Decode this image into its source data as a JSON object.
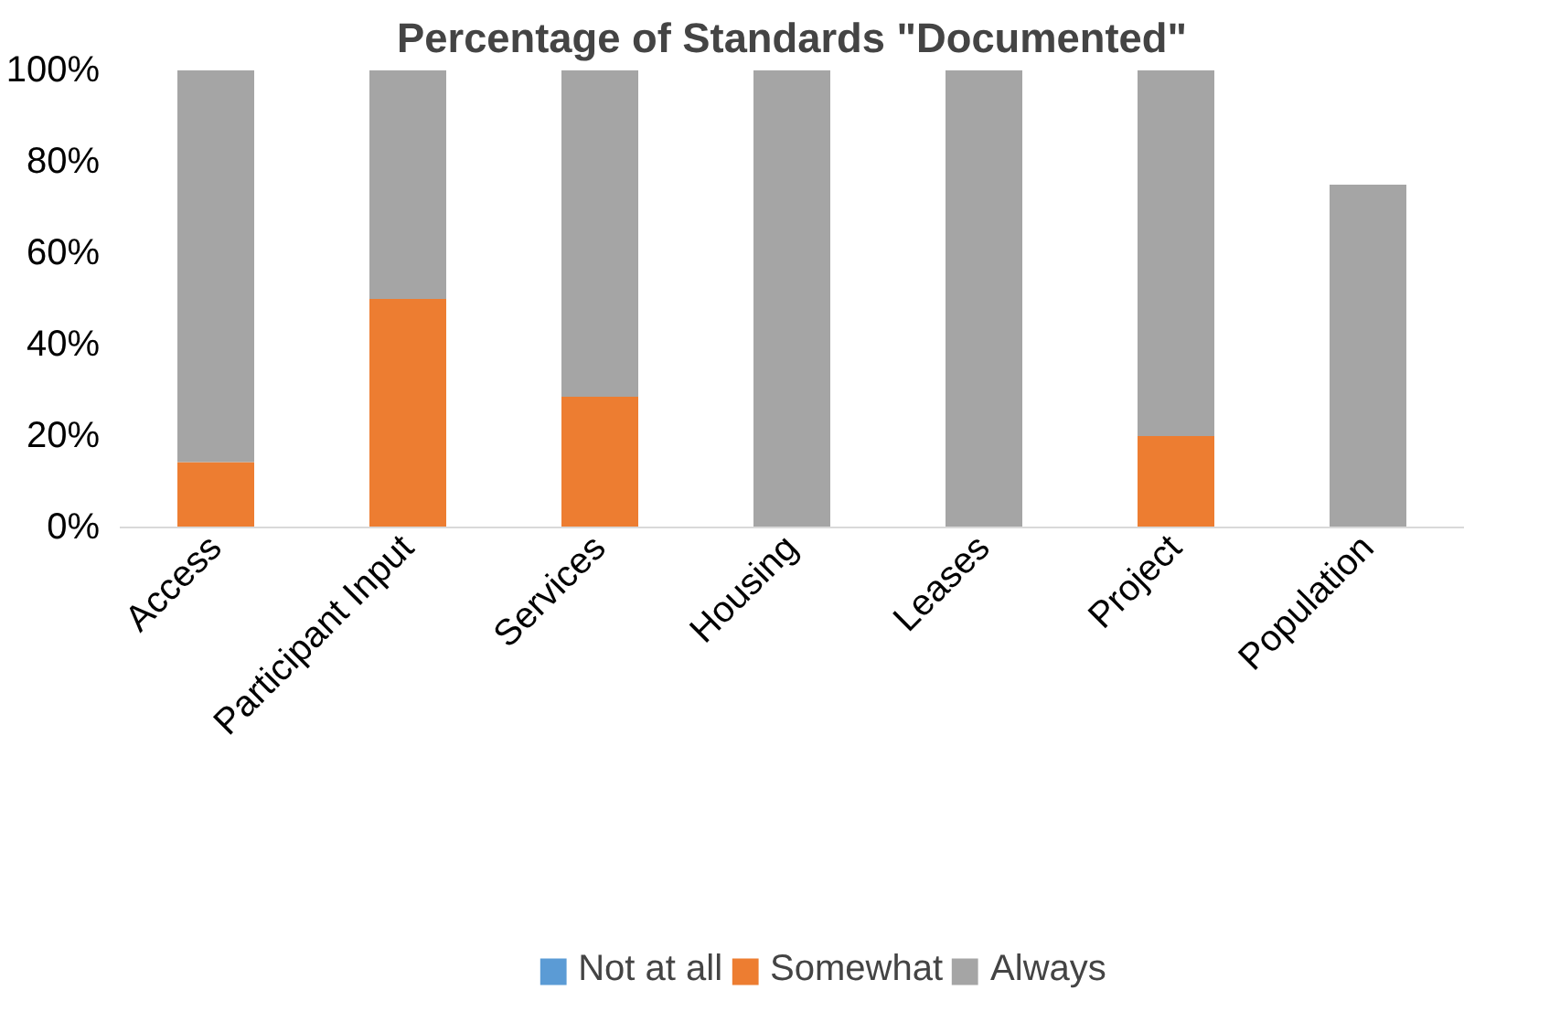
{
  "chart_data": {
    "type": "bar",
    "title": "Percentage of Standards \"Documented\"",
    "stacked": true,
    "categories": [
      "Access",
      "Participant Input",
      "Services",
      "Housing",
      "Leases",
      "Project",
      "Population"
    ],
    "series": [
      {
        "name": "Not at all",
        "color": "#5b9bd5",
        "values": [
          0,
          0,
          0,
          0,
          0,
          0,
          0
        ]
      },
      {
        "name": "Somewhat",
        "color": "#ed7d31",
        "values": [
          14.3,
          50,
          28.6,
          0,
          0,
          20,
          0
        ]
      },
      {
        "name": "Always",
        "color": "#a5a5a5",
        "values": [
          85.7,
          50,
          71.4,
          100,
          100,
          80,
          75
        ]
      }
    ],
    "ylim": [
      0,
      100
    ],
    "yticks": [
      {
        "value": 0,
        "label": "0%"
      },
      {
        "value": 20,
        "label": "20%"
      },
      {
        "value": 40,
        "label": "40%"
      },
      {
        "value": 60,
        "label": "60%"
      },
      {
        "value": 80,
        "label": "80%"
      },
      {
        "value": 100,
        "label": "100%"
      }
    ],
    "grid": false,
    "legend": "bottom"
  }
}
